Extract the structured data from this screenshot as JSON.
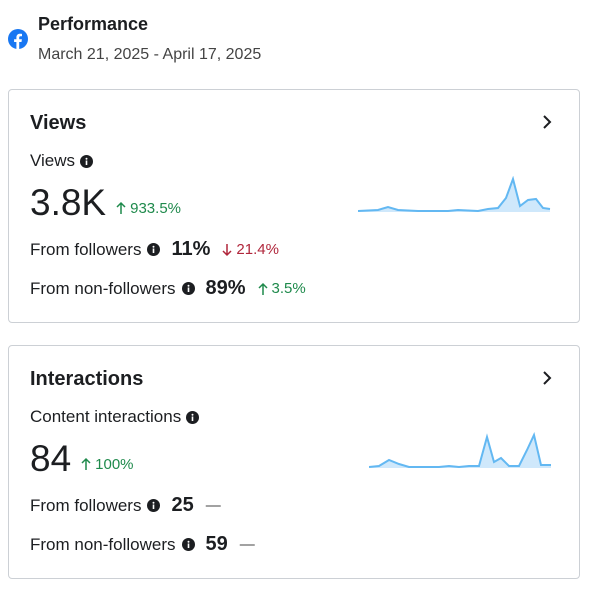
{
  "header": {
    "title": "Performance",
    "date_range": "March 21, 2025 - April 17, 2025"
  },
  "cards": [
    {
      "title": "Views",
      "metric_label": "Views",
      "metric_value": "3.8K",
      "change": "933.5%",
      "rows": [
        {
          "label": "From followers",
          "value": "11%",
          "change": "21.4%"
        },
        {
          "label": "From non-followers",
          "value": "89%",
          "change": "3.5%"
        }
      ]
    },
    {
      "title": "Interactions",
      "metric_label": "Content interactions",
      "metric_value": "84",
      "change": "100%",
      "rows": [
        {
          "label": "From followers",
          "value": "25",
          "change": "—"
        },
        {
          "label": "From non-followers",
          "value": "59",
          "change": "—"
        }
      ]
    }
  ]
}
